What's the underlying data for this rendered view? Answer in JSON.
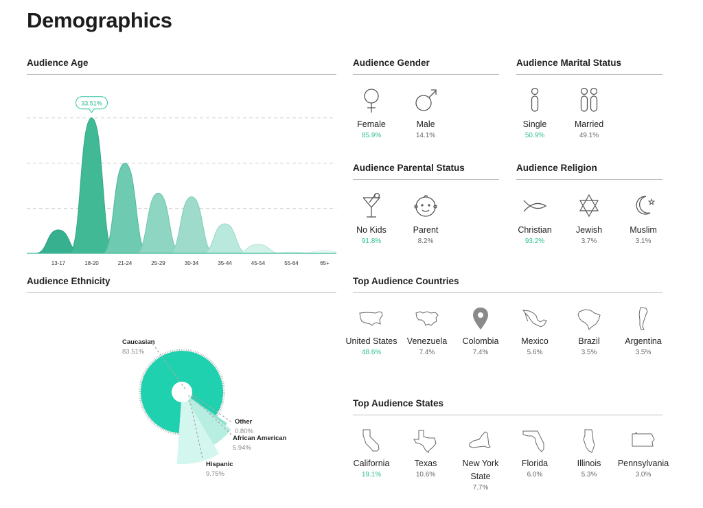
{
  "page_title": "Demographics",
  "age": {
    "title": "Audience Age",
    "highlight_label": "33.51%",
    "chart_data": {
      "type": "area",
      "categories": [
        "13-17",
        "18-20",
        "21-24",
        "25-29",
        "30-34",
        "35-44",
        "45-54",
        "55-64",
        "65+"
      ],
      "values": [
        5.8,
        33.51,
        22.3,
        14.9,
        14.0,
        7.3,
        2.2,
        0.3,
        0.7
      ],
      "ylim": [
        0,
        35
      ],
      "grid": true,
      "highlight_index": 1
    }
  },
  "gender": {
    "title": "Audience Gender",
    "items": [
      {
        "icon": "female-icon",
        "label": "Female",
        "value": "85.9%"
      },
      {
        "icon": "male-icon",
        "label": "Male",
        "value": "14.1%"
      }
    ]
  },
  "marital": {
    "title": "Audience Marital Status",
    "items": [
      {
        "icon": "single-person-icon",
        "label": "Single",
        "value": "50.9%"
      },
      {
        "icon": "married-couple-icon",
        "label": "Married",
        "value": "49.1%"
      }
    ]
  },
  "parental": {
    "title": "Audience Parental Status",
    "items": [
      {
        "icon": "cocktail-icon",
        "label": "No Kids",
        "value": "91.8%"
      },
      {
        "icon": "baby-face-icon",
        "label": "Parent",
        "value": "8.2%"
      }
    ]
  },
  "religion": {
    "title": "Audience Religion",
    "items": [
      {
        "icon": "fish-icon",
        "label": "Christian",
        "value": "93.2%"
      },
      {
        "icon": "star-of-david-icon",
        "label": "Jewish",
        "value": "3.7%"
      },
      {
        "icon": "crescent-icon",
        "label": "Muslim",
        "value": "3.1%"
      }
    ]
  },
  "ethnicity": {
    "title": "Audience Ethnicity",
    "chart_data": {
      "type": "pie",
      "slices": [
        {
          "label": "Caucasian",
          "value": 83.51,
          "display": "83.51%",
          "color": "#1fd1ae"
        },
        {
          "label": "Hispanic",
          "value": 9.75,
          "display": "9.75%",
          "color": "#d3f6ee"
        },
        {
          "label": "African American",
          "value": 5.94,
          "display": "5.94%",
          "color": "#b8ede2"
        },
        {
          "label": "Other",
          "value": 0.8,
          "display": "0.80%",
          "color": "#8fe0cf"
        }
      ]
    }
  },
  "countries": {
    "title": "Top Audience Countries",
    "items": [
      {
        "icon": "usa-map-icon",
        "label": "United States",
        "value": "48.6%"
      },
      {
        "icon": "venezuela-map-icon",
        "label": "Venezuela",
        "value": "7.4%"
      },
      {
        "icon": "location-pin-icon",
        "label": "Colombia",
        "value": "7.4%"
      },
      {
        "icon": "mexico-map-icon",
        "label": "Mexico",
        "value": "5.6%"
      },
      {
        "icon": "brazil-map-icon",
        "label": "Brazil",
        "value": "3.5%"
      },
      {
        "icon": "argentina-map-icon",
        "label": "Argentina",
        "value": "3.5%"
      }
    ]
  },
  "states": {
    "title": "Top Audience States",
    "items": [
      {
        "icon": "california-map-icon",
        "label": "California",
        "value": "19.1%"
      },
      {
        "icon": "texas-map-icon",
        "label": "Texas",
        "value": "10.6%"
      },
      {
        "icon": "new-york-map-icon",
        "label": "New York State",
        "value": "7.7%"
      },
      {
        "icon": "florida-map-icon",
        "label": "Florida",
        "value": "6.0%"
      },
      {
        "icon": "illinois-map-icon",
        "label": "Illinois",
        "value": "5.3%"
      },
      {
        "icon": "pennsylvania-map-icon",
        "label": "Pennsylvania",
        "value": "3.0%"
      }
    ]
  }
}
